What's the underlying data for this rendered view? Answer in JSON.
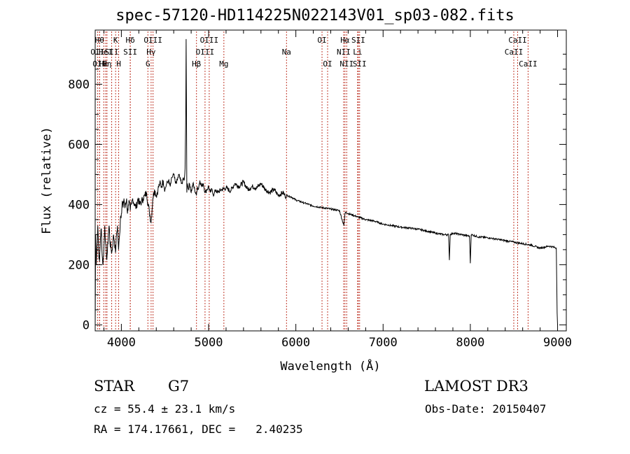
{
  "chart_data": {
    "type": "line",
    "title": "spec-57120-HD114225N022143V01_sp03-082.fits",
    "xlabel": "Wavelength (Å)",
    "ylabel": "Flux (relative)",
    "xlim": [
      3700,
      9100
    ],
    "ylim": [
      -20,
      980
    ],
    "xticks": [
      4000,
      5000,
      6000,
      7000,
      8000,
      9000
    ],
    "yticks": [
      0,
      200,
      400,
      600,
      800
    ],
    "series": [
      {
        "name": "flux",
        "x": [
          3700,
          3705,
          3712,
          3720,
          3730,
          3740,
          3750,
          3760,
          3770,
          3780,
          3790,
          3800,
          3810,
          3820,
          3830,
          3840,
          3850,
          3860,
          3870,
          3880,
          3890,
          3900,
          3910,
          3920,
          3933,
          3945,
          3955,
          3968,
          3980,
          3990,
          4000,
          4010,
          4020,
          4030,
          4040,
          4050,
          4060,
          4070,
          4080,
          4090,
          4102,
          4115,
          4130,
          4150,
          4170,
          4190,
          4210,
          4230,
          4250,
          4270,
          4290,
          4305,
          4320,
          4340,
          4360,
          4380,
          4400,
          4420,
          4440,
          4460,
          4480,
          4500,
          4520,
          4540,
          4560,
          4580,
          4600,
          4620,
          4640,
          4660,
          4680,
          4700,
          4710,
          4720,
          4730,
          4738,
          4742,
          4746,
          4750,
          4755,
          4762,
          4770,
          4780,
          4790,
          4800,
          4820,
          4840,
          4860,
          4870,
          4880,
          4900,
          4920,
          4940,
          4960,
          4980,
          5000,
          5020,
          5040,
          5060,
          5080,
          5100,
          5150,
          5200,
          5250,
          5300,
          5350,
          5400,
          5450,
          5500,
          5550,
          5600,
          5650,
          5700,
          5750,
          5800,
          5850,
          5890,
          5900,
          5950,
          6000,
          6100,
          6200,
          6300,
          6400,
          6500,
          6550,
          6563,
          6575,
          6600,
          6700,
          6800,
          6900,
          7000,
          7100,
          7200,
          7300,
          7400,
          7500,
          7600,
          7700,
          7750,
          7760,
          7770,
          7800,
          7900,
          7990,
          8000,
          8010,
          8100,
          8200,
          8300,
          8400,
          8500,
          8600,
          8700,
          8800,
          8900,
          8960,
          8985,
          8995,
          9000
        ],
        "y": [
          0,
          300,
          200,
          260,
          330,
          240,
          210,
          290,
          320,
          230,
          200,
          260,
          330,
          270,
          220,
          240,
          300,
          330,
          270,
          260,
          240,
          260,
          300,
          280,
          240,
          300,
          330,
          250,
          300,
          360,
          370,
          410,
          390,
          420,
          390,
          400,
          420,
          370,
          400,
          410,
          380,
          400,
          420,
          400,
          390,
          420,
          400,
          410,
          420,
          430,
          440,
          400,
          380,
          340,
          420,
          450,
          430,
          450,
          470,
          460,
          480,
          450,
          470,
          480,
          460,
          490,
          500,
          470,
          480,
          500,
          480,
          470,
          490,
          480,
          520,
          700,
          950,
          720,
          440,
          470,
          460,
          450,
          470,
          460,
          440,
          470,
          450,
          430,
          460,
          450,
          480,
          460,
          470,
          440,
          450,
          460,
          440,
          450,
          430,
          450,
          440,
          450,
          455,
          445,
          470,
          460,
          475,
          450,
          460,
          455,
          470,
          450,
          440,
          450,
          430,
          440,
          425,
          430,
          425,
          415,
          405,
          395,
          390,
          385,
          380,
          330,
          370,
          375,
          370,
          360,
          350,
          345,
          335,
          330,
          325,
          322,
          318,
          312,
          305,
          300,
          300,
          215,
          300,
          305,
          300,
          295,
          205,
          300,
          292,
          290,
          285,
          280,
          275,
          270,
          265,
          255,
          262,
          258,
          255,
          40,
          0
        ]
      }
    ],
    "lines": [
      {
        "wl": 3727,
        "label": "OII",
        "row": 2
      },
      {
        "wl": 3750,
        "label": "Hθ",
        "row": 1
      },
      {
        "wl": 3750,
        "label": "OII",
        "row": 3
      },
      {
        "wl": 3798,
        "label": "Hε",
        "row": 3
      },
      {
        "wl": 3820,
        "label": "HeI",
        "row": 2
      },
      {
        "wl": 3835,
        "label": "Hη",
        "row": 3
      },
      {
        "wl": 3889,
        "label": "SII",
        "row": 2
      },
      {
        "wl": 3934,
        "label": "K",
        "row": 1
      },
      {
        "wl": 3969,
        "label": "H",
        "row": 3
      },
      {
        "wl": 4102,
        "label": "Hδ",
        "row": 1
      },
      {
        "wl": 4102,
        "label": "SII",
        "row": 2
      },
      {
        "wl": 4304,
        "label": "G",
        "row": 3
      },
      {
        "wl": 4341,
        "label": "Hγ",
        "row": 2
      },
      {
        "wl": 4363,
        "label": "OIII",
        "row": 1
      },
      {
        "wl": 4861,
        "label": "Hβ",
        "row": 3
      },
      {
        "wl": 4959,
        "label": "OIII",
        "row": 2
      },
      {
        "wl": 5007,
        "label": "OIII",
        "row": 1
      },
      {
        "wl": 5175,
        "label": "Mg",
        "row": 3
      },
      {
        "wl": 5893,
        "label": "Na",
        "row": 2
      },
      {
        "wl": 6300,
        "label": "OI",
        "row": 1
      },
      {
        "wl": 6364,
        "label": "OI",
        "row": 3
      },
      {
        "wl": 6548,
        "label": "NII",
        "row": 2
      },
      {
        "wl": 6563,
        "label": "Hα",
        "row": 1
      },
      {
        "wl": 6583,
        "label": "NII",
        "row": 3
      },
      {
        "wl": 6708,
        "label": "Li",
        "row": 2
      },
      {
        "wl": 6716,
        "label": "SII",
        "row": 1
      },
      {
        "wl": 6731,
        "label": "SII",
        "row": 3
      },
      {
        "wl": 8498,
        "label": "CaII",
        "row": 2
      },
      {
        "wl": 8542,
        "label": "CaII",
        "row": 1
      },
      {
        "wl": 8662,
        "label": "CaII",
        "row": 3
      }
    ]
  },
  "info": {
    "class": "STAR",
    "subclass": "G7",
    "survey": "LAMOST DR3",
    "cz": "cz = 55.4 ± 23.1 km/s",
    "obs_date": "Obs-Date: 20150407",
    "coords": "RA = 174.17661, DEC =   2.40235"
  },
  "colors": {
    "line_marker": "#c0392b",
    "spectrum": "#000000",
    "axes": "#000000"
  }
}
